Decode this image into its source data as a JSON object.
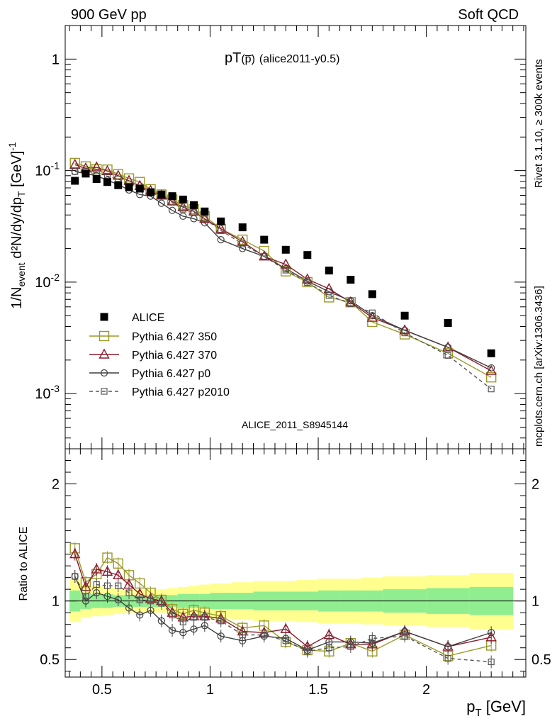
{
  "header": {
    "left": "900 GeV pp",
    "right": "Soft QCD"
  },
  "side_text": {
    "rivet": "Rivet 3.1.10, ≥ 300k events",
    "mcplots": "mcplots.cern.ch [arXiv:1306.3436]"
  },
  "chart_data": [
    {
      "type": "scatter",
      "title_main": "pT",
      "title_paren": "(p̅)",
      "title_rest": "(alice2011-y0.5)",
      "ylabel_main": "1/N",
      "ylabel_sub": "event",
      "ylabel_rest": " d²N/dy/dp",
      "ylabel_sub2": "T",
      "ylabel_unit": " [GeV]",
      "ylabel_unit_sup": "-1",
      "xlabel_main": "p",
      "xlabel_sub": "T",
      "xlabel_unit": " [GeV]",
      "watermark": "ALICE_2011_S8945144",
      "ylog": true,
      "xlim": [
        0.33,
        2.46
      ],
      "ylim": [
        0.00032,
        2.0
      ],
      "yticks": [
        {
          "value": 1,
          "label": "1"
        },
        {
          "value": 0.1,
          "label": "10",
          "exp": "-1"
        },
        {
          "value": 0.01,
          "label": "10",
          "exp": "-2"
        },
        {
          "value": 0.001,
          "label": "10",
          "exp": "-3"
        }
      ],
      "x": [
        0.375,
        0.425,
        0.475,
        0.525,
        0.575,
        0.625,
        0.675,
        0.725,
        0.775,
        0.825,
        0.875,
        0.925,
        0.975,
        1.05,
        1.15,
        1.25,
        1.35,
        1.45,
        1.55,
        1.65,
        1.75,
        1.9,
        2.1,
        2.3
      ],
      "series": [
        {
          "name": "ALICE",
          "color": "#000000",
          "marker": "filled-square",
          "values": [
            0.081,
            0.094,
            0.084,
            0.079,
            0.074,
            0.071,
            0.069,
            0.064,
            0.061,
            0.059,
            0.055,
            0.049,
            0.043,
            0.035,
            0.031,
            0.024,
            0.0195,
            0.0175,
            0.0127,
            0.0105,
            0.0078,
            0.005,
            0.0043,
            0.0023
          ]
        },
        {
          "name": "Pythia 6.427 350",
          "color": "#9a9a2a",
          "marker": "open-square",
          "dashed": false,
          "values": [
            0.117,
            0.109,
            0.103,
            0.102,
            0.093,
            0.085,
            0.079,
            0.068,
            0.061,
            0.055,
            0.049,
            0.045,
            0.039,
            0.03,
            0.024,
            0.019,
            0.0125,
            0.01,
            0.0073,
            0.0066,
            0.0044,
            0.0034,
            0.0023,
            0.0014
          ]
        },
        {
          "name": "Pythia 6.427 370",
          "color": "#8b1a2b",
          "marker": "open-triangle",
          "dashed": false,
          "values": [
            0.113,
            0.105,
            0.107,
            0.099,
            0.09,
            0.081,
            0.073,
            0.066,
            0.06,
            0.053,
            0.047,
            0.043,
            0.037,
            0.03,
            0.023,
            0.017,
            0.0144,
            0.0106,
            0.0087,
            0.0066,
            0.0048,
            0.0037,
            0.0026,
            0.0016
          ]
        },
        {
          "name": "Pythia 6.427 p0",
          "color": "#3f3f3f",
          "marker": "open-circle",
          "dashed": false,
          "values": [
            0.098,
            0.094,
            0.09,
            0.082,
            0.075,
            0.067,
            0.061,
            0.059,
            0.051,
            0.044,
            0.039,
            0.037,
            0.034,
            0.024,
            0.02,
            0.017,
            0.0132,
            0.0102,
            0.0082,
            0.0068,
            0.005,
            0.0037,
            0.0026,
            0.0017
          ]
        },
        {
          "name": "Pythia 6.427 p2010",
          "color": "#555555",
          "marker": "open-small-square",
          "dashed": true,
          "values": [
            0.098,
            0.098,
            0.096,
            0.089,
            0.084,
            0.076,
            0.07,
            0.064,
            0.06,
            0.052,
            0.045,
            0.042,
            0.037,
            0.029,
            0.022,
            0.017,
            0.0128,
            0.0099,
            0.0076,
            0.0064,
            0.0053,
            0.0035,
            0.0022,
            0.0011
          ]
        }
      ]
    },
    {
      "type": "line",
      "ylabel": "Ratio to ALICE",
      "xlim": [
        0.33,
        2.46
      ],
      "ylim": [
        0.35,
        2.3
      ],
      "yticks": [
        {
          "value": 0.5,
          "label": "0.5"
        },
        {
          "value": 1,
          "label": "1"
        },
        {
          "value": 2,
          "label": "2"
        }
      ],
      "xticks": [
        {
          "value": 0.5,
          "label": "0.5"
        },
        {
          "value": 1,
          "label": "1"
        },
        {
          "value": 1.5,
          "label": "1.5"
        },
        {
          "value": 2,
          "label": "2"
        }
      ],
      "bands": {
        "edges": [
          0.35,
          0.4,
          0.45,
          0.5,
          0.55,
          0.6,
          0.65,
          0.7,
          0.75,
          0.8,
          0.85,
          0.9,
          0.95,
          1.0,
          1.1,
          1.2,
          1.3,
          1.4,
          1.5,
          1.6,
          1.7,
          1.8,
          2.0,
          2.2,
          2.4
        ],
        "stat_sys_halfwidth": [
          0.18,
          0.14,
          0.13,
          0.12,
          0.11,
          0.1,
          0.1,
          0.1,
          0.1,
          0.11,
          0.12,
          0.13,
          0.14,
          0.15,
          0.16,
          0.17,
          0.17,
          0.18,
          0.19,
          0.19,
          0.2,
          0.21,
          0.22,
          0.24
        ],
        "sys_halfwidth": [
          0.09,
          0.07,
          0.06,
          0.06,
          0.05,
          0.05,
          0.05,
          0.05,
          0.05,
          0.05,
          0.06,
          0.06,
          0.06,
          0.07,
          0.07,
          0.08,
          0.08,
          0.08,
          0.09,
          0.09,
          0.09,
          0.1,
          0.11,
          0.12
        ],
        "outer_color": "#ffff90",
        "inner_color": "#90ee90"
      },
      "series": [
        {
          "name": "Pythia 6.427 350",
          "values": [
            1.45,
            1.16,
            1.23,
            1.37,
            1.32,
            1.22,
            1.15,
            1.07,
            1.01,
            0.93,
            0.89,
            0.92,
            0.9,
            0.87,
            0.77,
            0.79,
            0.65,
            0.58,
            0.57,
            0.64,
            0.57,
            0.71,
            0.53,
            0.62
          ]
        },
        {
          "name": "Pythia 6.427 370",
          "values": [
            1.4,
            1.12,
            1.27,
            1.25,
            1.22,
            1.14,
            1.06,
            1.02,
            1.0,
            0.9,
            0.86,
            0.87,
            0.87,
            0.85,
            0.74,
            0.73,
            0.76,
            0.61,
            0.71,
            0.63,
            0.63,
            0.74,
            0.61,
            0.69
          ]
        },
        {
          "name": "Pythia 6.427 p0",
          "values": [
            1.21,
            1.0,
            1.07,
            1.04,
            1.01,
            0.94,
            0.88,
            0.92,
            0.83,
            0.75,
            0.73,
            0.76,
            0.79,
            0.7,
            0.66,
            0.7,
            0.68,
            0.58,
            0.65,
            0.65,
            0.64,
            0.74,
            0.61,
            0.73
          ]
        },
        {
          "name": "Pythia 6.427 p2010",
          "values": [
            1.21,
            1.04,
            1.14,
            1.13,
            1.13,
            1.07,
            1.01,
            1.0,
            0.98,
            0.88,
            0.82,
            0.86,
            0.86,
            0.83,
            0.71,
            0.71,
            0.66,
            0.57,
            0.6,
            0.61,
            0.68,
            0.7,
            0.51,
            0.48
          ]
        }
      ]
    }
  ]
}
